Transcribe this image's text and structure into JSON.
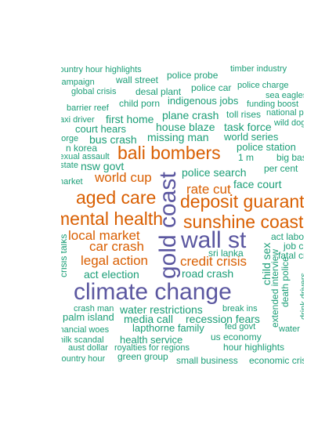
{
  "chart_data": {
    "type": "wordcloud",
    "palette": {
      "large": "#5b57a0",
      "medium": "#d95f02",
      "small": "#1b9e77"
    },
    "words": [
      {
        "text": "climate change",
        "tier": 1
      },
      {
        "text": "wall st",
        "tier": 1
      },
      {
        "text": "gold coast",
        "tier": 1,
        "vertical": true
      },
      {
        "text": "bali bombers",
        "tier": 2
      },
      {
        "text": "sunshine coast",
        "tier": 2
      },
      {
        "text": "deposit guarantee",
        "tier": 2
      },
      {
        "text": "mental health",
        "tier": 2
      },
      {
        "text": "aged care",
        "tier": 2
      },
      {
        "text": "local market",
        "tier": 3
      },
      {
        "text": "car crash",
        "tier": 3
      },
      {
        "text": "legal action",
        "tier": 3
      },
      {
        "text": "credit crisis",
        "tier": 3
      },
      {
        "text": "rate cut",
        "tier": 3
      },
      {
        "text": "world cup",
        "tier": 3
      },
      {
        "text": "police search",
        "tier": 4
      },
      {
        "text": "road crash",
        "tier": 4
      },
      {
        "text": "act election",
        "tier": 4
      },
      {
        "text": "water restrictions",
        "tier": 4
      },
      {
        "text": "recession fears",
        "tier": 4
      },
      {
        "text": "missing man",
        "tier": 4
      },
      {
        "text": "house blaze",
        "tier": 4
      },
      {
        "text": "face court",
        "tier": 4
      },
      {
        "text": "media call",
        "tier": 4
      },
      {
        "text": "nsw govt",
        "tier": 4
      },
      {
        "text": "bus crash",
        "tier": 4
      },
      {
        "text": "first home",
        "tier": 4
      },
      {
        "text": "plane crash",
        "tier": 4
      },
      {
        "text": "task force",
        "tier": 4
      },
      {
        "text": "child sex",
        "tier": 4,
        "vertical": true
      },
      {
        "text": "indigenous jobs",
        "tier": 5
      },
      {
        "text": "court hears",
        "tier": 5
      },
      {
        "text": "world series",
        "tier": 5
      },
      {
        "text": "police station",
        "tier": 5
      },
      {
        "text": "lapthorne family",
        "tier": 5
      },
      {
        "text": "palm island",
        "tier": 5
      },
      {
        "text": "health service",
        "tier": 5
      },
      {
        "text": "police probe",
        "tier": 6
      },
      {
        "text": "police car",
        "tier": 6
      },
      {
        "text": "wall street",
        "tier": 6
      },
      {
        "text": "desal plant",
        "tier": 6
      },
      {
        "text": "child porn",
        "tier": 6
      },
      {
        "text": "toll rises",
        "tier": 6
      },
      {
        "text": "n korea",
        "tier": 6
      },
      {
        "text": "sri lanka",
        "tier": 6
      },
      {
        "text": "extended interview",
        "tier": 6,
        "vertical": true
      },
      {
        "text": "death police",
        "tier": 6,
        "vertical": true
      },
      {
        "text": "crisis talks",
        "tier": 6,
        "vertical": true
      },
      {
        "text": "per cent",
        "tier": 6
      },
      {
        "text": "big bash",
        "tier": 6
      },
      {
        "text": "1 m",
        "tier": 6
      },
      {
        "text": "act labor",
        "tier": 6
      },
      {
        "text": "fatal crash",
        "tier": 6
      },
      {
        "text": "job cuts",
        "tier": 6
      },
      {
        "text": "green group",
        "tier": 6
      },
      {
        "text": "small business",
        "tier": 6
      },
      {
        "text": "us economy",
        "tier": 6
      },
      {
        "text": "hour highlights",
        "tier": 6
      },
      {
        "text": "economic crisis",
        "tier": 6
      },
      {
        "text": "timber industry",
        "tier": 7
      },
      {
        "text": "country hour highlights",
        "tier": 7
      },
      {
        "text": "campaign",
        "tier": 7
      },
      {
        "text": "global crisis",
        "tier": 7
      },
      {
        "text": "police charge",
        "tier": 7
      },
      {
        "text": "sea eagles",
        "tier": 7
      },
      {
        "text": "funding boost",
        "tier": 7
      },
      {
        "text": "barrier reef",
        "tier": 7
      },
      {
        "text": "national park",
        "tier": 7
      },
      {
        "text": "taxi driver",
        "tier": 7
      },
      {
        "text": "wild dogs",
        "tier": 7
      },
      {
        "text": "gorge",
        "tier": 7
      },
      {
        "text": "sexual assault",
        "tier": 7
      },
      {
        "text": "estate",
        "tier": 7
      },
      {
        "text": "market",
        "tier": 7
      },
      {
        "text": "crash man",
        "tier": 7
      },
      {
        "text": "break ins",
        "tier": 7
      },
      {
        "text": "financial woes",
        "tier": 7
      },
      {
        "text": "fed govt",
        "tier": 7
      },
      {
        "text": "water",
        "tier": 7
      },
      {
        "text": "milk scandal",
        "tier": 7
      },
      {
        "text": "aust dollar",
        "tier": 7
      },
      {
        "text": "royalties for regions",
        "tier": 7
      },
      {
        "text": "country hour",
        "tier": 7
      },
      {
        "text": "drink drivers",
        "tier": 7,
        "vertical": true
      }
    ]
  }
}
